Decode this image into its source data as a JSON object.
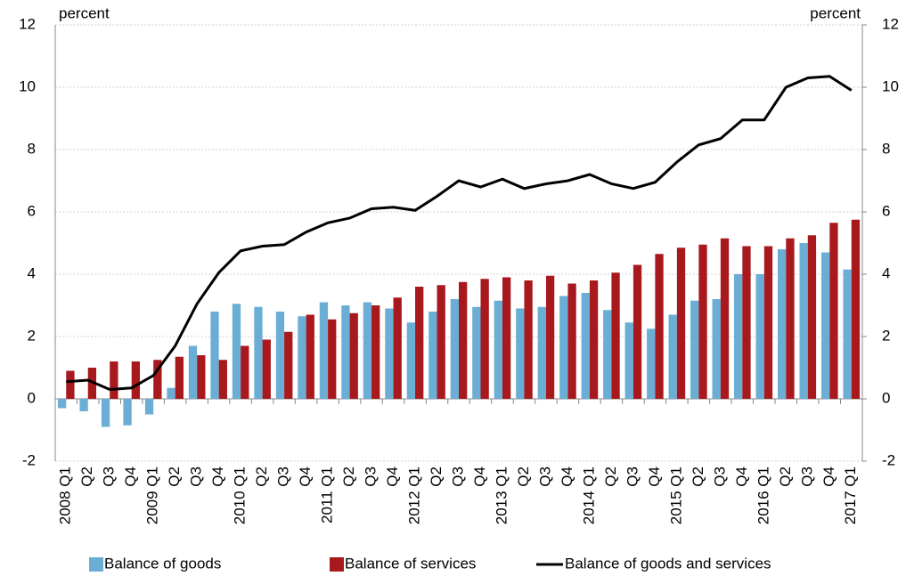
{
  "chart_data": {
    "type": "bar-line",
    "ylabel": "percent",
    "y2label": "percent",
    "categories": [
      "2008 Q1",
      "Q2",
      "Q3",
      "Q4",
      "2009 Q1",
      "Q2",
      "Q3",
      "Q4",
      "2010 Q1",
      "Q2",
      "Q3",
      "Q4",
      "2011 Q1",
      "Q2",
      "Q3",
      "Q4",
      "2012 Q1",
      "Q2",
      "Q3",
      "Q4",
      "2013 Q1",
      "Q2",
      "Q3",
      "Q4",
      "2014 Q1",
      "Q2",
      "Q3",
      "Q4",
      "2015 Q1",
      "Q2",
      "Q3",
      "Q4",
      "2016 Q1",
      "Q2",
      "Q3",
      "Q4",
      "2017 Q1"
    ],
    "series": [
      {
        "name": "Balance of goods",
        "type": "bar",
        "color": "#6aaed6",
        "values": [
          -0.3,
          -0.4,
          -0.9,
          -0.85,
          -0.5,
          0.35,
          1.7,
          2.8,
          3.05,
          2.95,
          2.8,
          2.65,
          3.1,
          3.0,
          3.1,
          2.9,
          2.45,
          2.8,
          3.2,
          2.95,
          3.15,
          2.9,
          2.95,
          3.3,
          3.4,
          2.85,
          2.45,
          2.25,
          2.7,
          3.15,
          3.2,
          4.0,
          4.0,
          4.8,
          5.0,
          4.7,
          4.15
        ]
      },
      {
        "name": "Balance of services",
        "type": "bar",
        "color": "#a8191d",
        "values": [
          0.9,
          1.0,
          1.2,
          1.2,
          1.25,
          1.35,
          1.4,
          1.25,
          1.7,
          1.9,
          2.15,
          2.7,
          2.55,
          2.75,
          3.0,
          3.25,
          3.6,
          3.65,
          3.75,
          3.85,
          3.9,
          3.8,
          3.95,
          3.7,
          3.8,
          4.05,
          4.3,
          4.65,
          4.85,
          4.95,
          5.15,
          4.9,
          4.9,
          5.15,
          5.25,
          5.65,
          5.75
        ]
      },
      {
        "name": "Balance of goods and services",
        "type": "line",
        "color": "#000000",
        "values": [
          0.55,
          0.6,
          0.3,
          0.35,
          0.75,
          1.7,
          3.05,
          4.05,
          4.75,
          4.9,
          4.95,
          5.35,
          5.65,
          5.8,
          6.1,
          6.15,
          6.05,
          6.5,
          7.0,
          6.8,
          7.05,
          6.75,
          6.9,
          7.0,
          7.2,
          6.9,
          6.75,
          6.95,
          7.6,
          8.15,
          8.35,
          8.95,
          8.95,
          10.0,
          10.3,
          10.35,
          9.9
        ]
      }
    ],
    "ylim": [
      -2,
      12
    ],
    "yticks": [
      -2,
      0,
      2,
      4,
      6,
      8,
      10,
      12
    ],
    "y2lim": [
      -2,
      12
    ],
    "y2ticks": [
      -2,
      0,
      2,
      4,
      6,
      8,
      10,
      12
    ],
    "grid": true
  }
}
